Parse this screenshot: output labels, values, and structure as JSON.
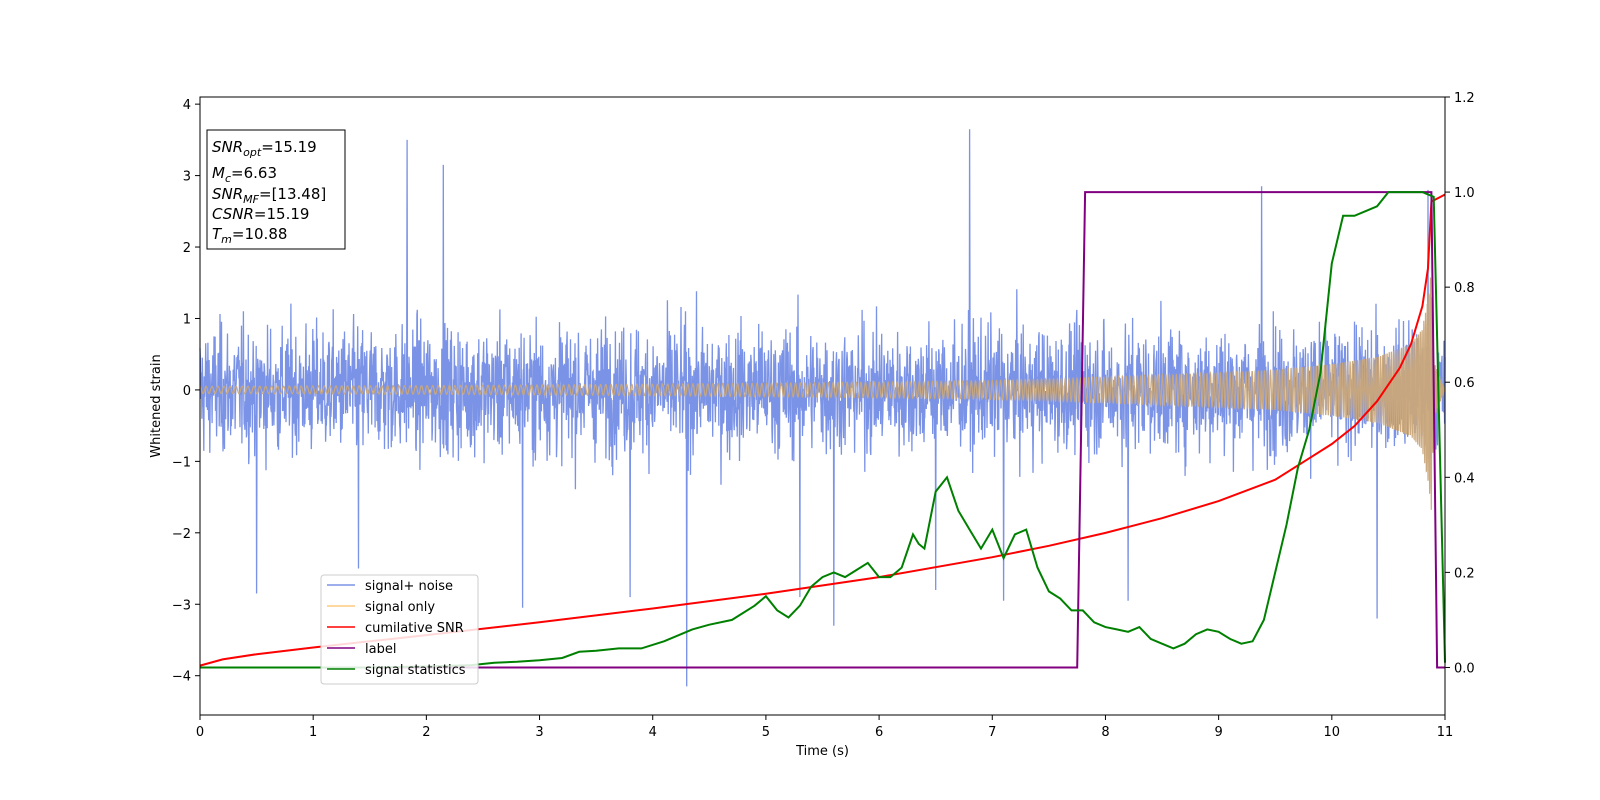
{
  "chart_data": {
    "type": "line",
    "xlabel": "Time (s)",
    "ylabel": "Whitened strain",
    "xlim": [
      0,
      11
    ],
    "ylim_left": [
      -4.55,
      4.1
    ],
    "ylim_right": [
      -0.1,
      1.2
    ],
    "x_ticks": [
      "0",
      "1",
      "2",
      "3",
      "4",
      "5",
      "6",
      "7",
      "8",
      "9",
      "10",
      "11"
    ],
    "y_ticks_left": [
      "−4",
      "−3",
      "−2",
      "−1",
      "0",
      "1",
      "2",
      "3",
      "4"
    ],
    "y_ticks_right": [
      "0.0",
      "0.2",
      "0.4",
      "0.6",
      "0.8",
      "1.0",
      "1.2"
    ],
    "y_tick_values_left": [
      -4,
      -3,
      -2,
      -1,
      0,
      1,
      2,
      3,
      4
    ],
    "y_tick_values_right": [
      0.0,
      0.2,
      0.4,
      0.6,
      0.8,
      1.0,
      1.2
    ],
    "x_tick_values": [
      0,
      1,
      2,
      3,
      4,
      5,
      6,
      7,
      8,
      9,
      10,
      11
    ],
    "info_box": {
      "snr_opt": {
        "base": "SNR",
        "sub": "opt",
        "value": "=15.19"
      },
      "mc": {
        "base": "M",
        "sub": "c",
        "value": "=6.63"
      },
      "snr_mf": {
        "base": "SNR",
        "sub": "MF",
        "value": "=[13.48]"
      },
      "csnr": {
        "base": "CSNR",
        "value": "=15.19"
      },
      "tm": {
        "base": "T",
        "sub": "m",
        "value": "=10.88"
      }
    },
    "legend_placement": "lower-left",
    "series": [
      {
        "name": "signal+ noise",
        "axis": "left",
        "color": "#7b93e6",
        "style": "noise band",
        "typical_envelope": [
          -1.5,
          1.3
        ],
        "spikes": [
          [
            1.83,
            3.5
          ],
          [
            2.15,
            3.15
          ],
          [
            6.8,
            3.65
          ],
          [
            9.38,
            2.85
          ],
          [
            10.85,
            2.8
          ],
          [
            4.3,
            -4.15
          ],
          [
            2.85,
            -3.05
          ],
          [
            1.4,
            -2.5
          ],
          [
            0.5,
            -2.85
          ],
          [
            3.8,
            -2.9
          ],
          [
            5.6,
            -3.3
          ],
          [
            8.2,
            -2.95
          ],
          [
            10.4,
            -3.2
          ],
          [
            7.1,
            -2.95
          ],
          [
            6.5,
            -2.8
          ],
          [
            5.3,
            -2.9
          ]
        ]
      },
      {
        "name": "signal only",
        "axis": "left",
        "color": "#c9a77a",
        "style": "chirp",
        "amplitude_points": [
          [
            0,
            0.05
          ],
          [
            2,
            0.06
          ],
          [
            4,
            0.08
          ],
          [
            6,
            0.11
          ],
          [
            7,
            0.13
          ],
          [
            8,
            0.18
          ],
          [
            9,
            0.24
          ],
          [
            9.5,
            0.28
          ],
          [
            10,
            0.36
          ],
          [
            10.4,
            0.46
          ],
          [
            10.7,
            0.65
          ],
          [
            10.8,
            0.85
          ],
          [
            10.86,
            1.4
          ],
          [
            10.88,
            1.7
          ],
          [
            10.9,
            0.4
          ],
          [
            11,
            0
          ]
        ]
      },
      {
        "name": "cumilative SNR",
        "axis": "right",
        "color": "#ff0000",
        "x": [
          0,
          0.2,
          0.5,
          1,
          1.5,
          2,
          3,
          4,
          5,
          6,
          7,
          7.5,
          8,
          8.5,
          9,
          9.5,
          9.8,
          10,
          10.2,
          10.4,
          10.6,
          10.7,
          10.8,
          10.85,
          10.88,
          11
        ],
        "y": [
          0.004,
          0.017,
          0.028,
          0.042,
          0.055,
          0.068,
          0.095,
          0.124,
          0.155,
          0.19,
          0.232,
          0.256,
          0.283,
          0.314,
          0.35,
          0.395,
          0.44,
          0.47,
          0.508,
          0.56,
          0.63,
          0.68,
          0.76,
          0.84,
          0.98,
          0.995
        ]
      },
      {
        "name": "label",
        "axis": "right",
        "color": "#800080",
        "x": [
          0,
          7.75,
          7.82,
          10.88,
          10.93,
          11
        ],
        "y": [
          0,
          0,
          1,
          1,
          0,
          0
        ]
      },
      {
        "name": "signal statistics",
        "axis": "right",
        "color": "#008000",
        "x": [
          0,
          0.5,
          1,
          1.5,
          2,
          2.4,
          2.6,
          2.8,
          3,
          3.2,
          3.35,
          3.5,
          3.7,
          3.9,
          4.1,
          4.25,
          4.35,
          4.5,
          4.7,
          4.9,
          5,
          5.1,
          5.2,
          5.3,
          5.4,
          5.5,
          5.6,
          5.7,
          5.8,
          5.9,
          6,
          6.1,
          6.2,
          6.3,
          6.35,
          6.4,
          6.5,
          6.6,
          6.7,
          6.8,
          6.9,
          7,
          7.1,
          7.2,
          7.3,
          7.4,
          7.5,
          7.6,
          7.7,
          7.8,
          7.9,
          8,
          8.1,
          8.2,
          8.3,
          8.4,
          8.5,
          8.6,
          8.7,
          8.8,
          8.9,
          9,
          9.1,
          9.2,
          9.3,
          9.4,
          9.5,
          9.6,
          9.7,
          9.8,
          9.9,
          10,
          10.1,
          10.2,
          10.3,
          10.4,
          10.5,
          10.6,
          10.7,
          10.8,
          10.9,
          11
        ],
        "y": [
          0,
          0,
          0,
          0,
          0.002,
          0.005,
          0.01,
          0.012,
          0.015,
          0.02,
          0.033,
          0.035,
          0.04,
          0.04,
          0.055,
          0.07,
          0.08,
          0.09,
          0.1,
          0.13,
          0.15,
          0.12,
          0.105,
          0.13,
          0.17,
          0.19,
          0.2,
          0.19,
          0.205,
          0.22,
          0.19,
          0.19,
          0.21,
          0.28,
          0.26,
          0.25,
          0.37,
          0.4,
          0.33,
          0.29,
          0.25,
          0.29,
          0.23,
          0.28,
          0.29,
          0.21,
          0.16,
          0.145,
          0.12,
          0.12,
          0.095,
          0.085,
          0.08,
          0.075,
          0.085,
          0.06,
          0.05,
          0.04,
          0.05,
          0.07,
          0.08,
          0.075,
          0.06,
          0.05,
          0.055,
          0.1,
          0.2,
          0.3,
          0.42,
          0.5,
          0.62,
          0.85,
          0.95,
          0.95,
          0.96,
          0.97,
          1.0,
          1.0,
          1.0,
          1.0,
          0.99,
          0.01
        ]
      }
    ]
  }
}
